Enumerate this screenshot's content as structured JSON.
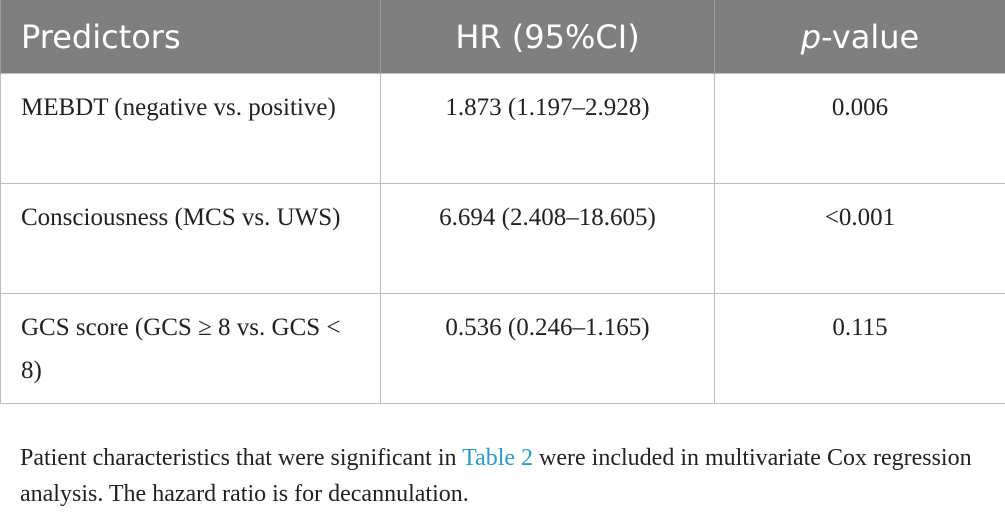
{
  "table": {
    "headers": {
      "predictors": "Predictors",
      "hr": "HR (95%CI)",
      "p_italic": "p",
      "p_rest": "-value"
    },
    "rows": [
      {
        "predictor": "MEBDT (negative vs. positive)",
        "hr": "1.873 (1.197–2.928)",
        "p": "0.006"
      },
      {
        "predictor": "Consciousness (MCS vs. UWS)",
        "hr": "6.694 (2.408–18.605)",
        "p": "<0.001"
      },
      {
        "predictor": "GCS score (GCS ≥ 8 vs. GCS < 8)",
        "hr": "0.536 (0.246–1.165)",
        "p": "0.115"
      }
    ]
  },
  "caption": {
    "before_link": "Patient characteristics that were significant in ",
    "link": "Table 2",
    "after_link": " were included in multivariate Cox regression analysis. The hazard ratio is for decannulation."
  },
  "colors": {
    "header_bg": "#7f7f7f",
    "link": "#2a9bc8"
  }
}
